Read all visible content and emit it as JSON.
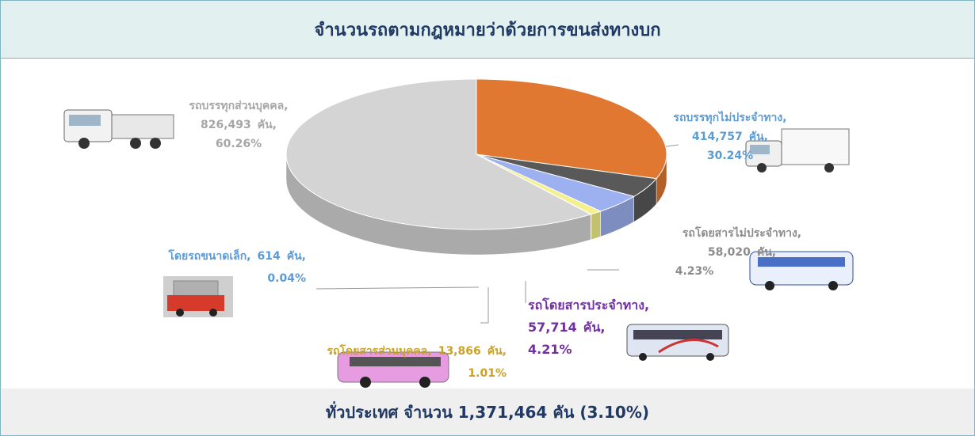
{
  "chart_data": {
    "type": "pie",
    "title": "จำนวนรถตามกฎหมายว่าด้วยการขนส่งทางบก",
    "categories": [
      "รถบรรทุกไม่ประจำทาง,",
      "รถโดยสารไม่ประจำทาง,",
      "รถโดยสารประจำทาง,",
      "รถโดยสารส่วนบุคคล,",
      "โดยรถขนาดเล็ก,",
      "รถบรรทุกส่วนบุคคล,"
    ],
    "values": [
      414757,
      58020,
      57714,
      13866,
      614,
      826493
    ],
    "value_labels": [
      "414,757",
      "58,020",
      "57,714",
      "13,866",
      "614",
      "826,493"
    ],
    "unit": "คัน,",
    "percents": [
      30.24,
      4.23,
      4.21,
      1.01,
      0.04,
      60.26
    ],
    "percent_labels": [
      "30.24%",
      "4.23%",
      "4.21%",
      "1.01%",
      "0.04%",
      "60.26%"
    ],
    "colors": [
      "#e07832",
      "#595959",
      "#9db0ef",
      "#f4f08c",
      "#eeeeee",
      "#d4d4d4"
    ],
    "label_colors": [
      "#5b9bd5",
      "#8c8c8c",
      "#7030a0",
      "#c9a227",
      "#5b9bd5",
      "#a6a6a6"
    ],
    "footer": "ทั่วประเทศ จำนวน 1,371,464 คัน (3.10%)"
  }
}
